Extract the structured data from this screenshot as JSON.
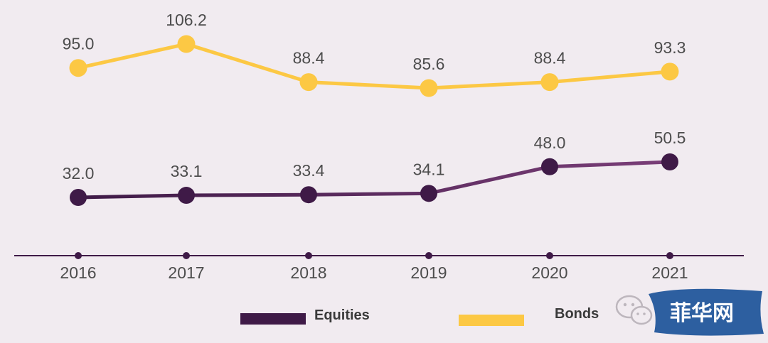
{
  "chart_data": {
    "type": "line",
    "x": [
      "2016",
      "2017",
      "2018",
      "2019",
      "2020",
      "2021"
    ],
    "ylim": [
      0,
      110
    ],
    "grid": false,
    "legend_position": "bottom",
    "series": [
      {
        "name": "Equities",
        "values": [
          32.0,
          33.1,
          33.4,
          34.1,
          48.0,
          50.5
        ],
        "labels": [
          "32.0",
          "33.1",
          "33.4",
          "34.1",
          "48.0",
          "50.5"
        ],
        "color": "#3f1a47"
      },
      {
        "name": "Bonds",
        "values": [
          95.0,
          106.2,
          88.4,
          85.6,
          88.4,
          93.3
        ],
        "labels": [
          "95.0",
          "106.2",
          "88.4",
          "85.6",
          "88.4",
          "93.3"
        ],
        "color": "#fcc844"
      }
    ]
  },
  "colors": {
    "background": "#f1ebf0",
    "axis": "#3f1a47",
    "equities_line_end": "#7a3e78",
    "watermark_bg": "#2d5fa0"
  },
  "watermark": {
    "text": "菲华网",
    "icon": "wechat-icon"
  }
}
